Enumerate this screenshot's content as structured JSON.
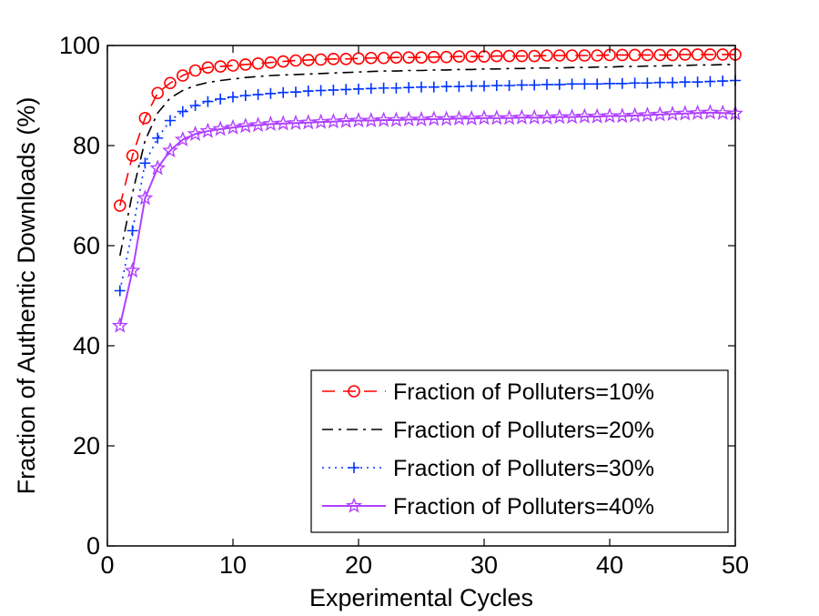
{
  "chart_data": {
    "type": "line",
    "title": "",
    "xlabel": "Experimental Cycles",
    "ylabel": "Fraction of Authentic Downloads (%)",
    "xlim": [
      0,
      50
    ],
    "ylim": [
      0,
      100
    ],
    "xticks": [
      0,
      10,
      20,
      30,
      40,
      50
    ],
    "yticks": [
      0,
      20,
      40,
      60,
      80,
      100
    ],
    "grid": false,
    "legend_position": "bottom-right",
    "x": [
      1,
      2,
      3,
      4,
      5,
      6,
      7,
      8,
      9,
      10,
      11,
      12,
      13,
      14,
      15,
      16,
      17,
      18,
      19,
      20,
      21,
      22,
      23,
      24,
      25,
      26,
      27,
      28,
      29,
      30,
      31,
      32,
      33,
      34,
      35,
      36,
      37,
      38,
      39,
      40,
      41,
      42,
      43,
      44,
      45,
      46,
      47,
      48,
      49,
      50
    ],
    "series": [
      {
        "name": "Fraction of Polluters=10%",
        "color": "#ff0000",
        "line_style": "dashed",
        "marker": "circle",
        "values": [
          68.0,
          78.0,
          85.5,
          90.5,
          92.5,
          94.0,
          95.0,
          95.6,
          95.8,
          96.0,
          96.2,
          96.4,
          96.6,
          96.8,
          97.0,
          97.1,
          97.2,
          97.3,
          97.3,
          97.4,
          97.5,
          97.5,
          97.6,
          97.6,
          97.6,
          97.7,
          97.7,
          97.8,
          97.8,
          97.8,
          97.9,
          97.9,
          97.9,
          97.9,
          98.0,
          98.0,
          98.0,
          98.0,
          98.0,
          98.1,
          98.1,
          98.1,
          98.1,
          98.1,
          98.1,
          98.2,
          98.2,
          98.2,
          98.2,
          98.2
        ]
      },
      {
        "name": "Fraction of Polluters=20%",
        "color": "#000000",
        "line_style": "dashdot",
        "marker": "none",
        "values": [
          58.0,
          70.5,
          81.0,
          86.5,
          89.5,
          91.0,
          92.0,
          92.6,
          93.0,
          93.3,
          93.6,
          93.8,
          94.0,
          94.1,
          94.2,
          94.3,
          94.4,
          94.5,
          94.6,
          94.7,
          94.8,
          94.9,
          94.9,
          95.0,
          95.0,
          95.1,
          95.1,
          95.2,
          95.2,
          95.3,
          95.3,
          95.4,
          95.4,
          95.5,
          95.5,
          95.5,
          95.6,
          95.6,
          95.7,
          95.7,
          95.8,
          95.8,
          95.9,
          95.9,
          96.0,
          96.0,
          96.1,
          96.1,
          96.2,
          96.2
        ]
      },
      {
        "name": "Fraction of Polluters=30%",
        "color": "#0033ff",
        "line_style": "dotted",
        "marker": "plus",
        "values": [
          51.0,
          63.0,
          76.5,
          81.5,
          85.0,
          86.8,
          88.0,
          88.8,
          89.3,
          89.7,
          90.0,
          90.2,
          90.4,
          90.6,
          90.7,
          90.9,
          91.0,
          91.1,
          91.2,
          91.3,
          91.4,
          91.5,
          91.5,
          91.6,
          91.7,
          91.7,
          91.8,
          91.8,
          91.9,
          91.9,
          92.0,
          92.0,
          92.1,
          92.1,
          92.2,
          92.2,
          92.3,
          92.3,
          92.3,
          92.4,
          92.4,
          92.5,
          92.5,
          92.6,
          92.6,
          92.7,
          92.7,
          92.8,
          92.9,
          93.0
        ]
      },
      {
        "name": "Fraction of Polluters=40%",
        "color": "#b040ff",
        "line_style": "solid",
        "marker": "star",
        "values": [
          44.0,
          55.0,
          69.5,
          75.5,
          79.0,
          81.2,
          82.3,
          82.9,
          83.3,
          83.6,
          83.9,
          84.1,
          84.3,
          84.4,
          84.5,
          84.6,
          84.7,
          84.8,
          84.9,
          85.0,
          85.0,
          85.1,
          85.1,
          85.2,
          85.2,
          85.3,
          85.3,
          85.4,
          85.4,
          85.5,
          85.5,
          85.5,
          85.6,
          85.6,
          85.6,
          85.7,
          85.7,
          85.8,
          85.8,
          85.9,
          85.9,
          86.0,
          86.1,
          86.2,
          86.3,
          86.4,
          86.5,
          86.6,
          86.5,
          86.4
        ]
      }
    ]
  }
}
